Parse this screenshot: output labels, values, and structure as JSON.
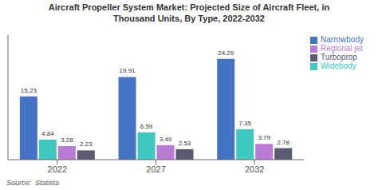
{
  "chart_data": {
    "type": "bar",
    "title": "Aircraft Propeller System Market: Projected Size of Aircraft Fleet, in\nThousand Units, By Type, 2022-2032",
    "categories": [
      "2022",
      "2027",
      "2032"
    ],
    "series": [
      {
        "name": "Narrowbody",
        "color": "#4472c4",
        "values": [
          15.23,
          19.91,
          24.29
        ]
      },
      {
        "name": "Widebody",
        "color": "#40c8c0",
        "values": [
          4.84,
          6.59,
          7.35
        ]
      },
      {
        "name": "Regional jet",
        "color": "#b97ad4",
        "values": [
          3.28,
          3.49,
          3.79
        ]
      },
      {
        "name": "Turboprop",
        "color": "#5a5a72",
        "values": [
          2.23,
          2.53,
          2.78
        ]
      }
    ],
    "ylim": [
      0,
      30
    ],
    "data_labels": true,
    "tick_labels": "x",
    "grid": false,
    "legend": "right",
    "annotations": [
      "Source:  Statista"
    ]
  }
}
